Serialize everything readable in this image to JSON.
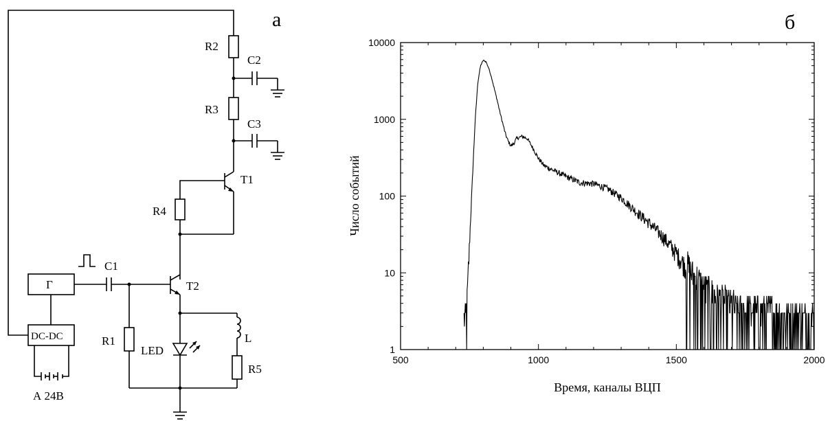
{
  "panel_a": {
    "letter": "а",
    "labels": {
      "r1": "R1",
      "r2": "R2",
      "r3": "R3",
      "r4": "R4",
      "r5": "R5",
      "c1": "C1",
      "c2": "C2",
      "c3": "C3",
      "t1": "T1",
      "t2": "T2",
      "led": "LED",
      "l": "L",
      "gen": "Г",
      "dcdc": "DC-DC",
      "battery": "А 24В"
    }
  },
  "panel_b": {
    "letter": "б",
    "chart_data": {
      "type": "line",
      "title": "",
      "xlabel": "Время, каналы ВЦП",
      "ylabel": "Число событий",
      "xlim": [
        500,
        2000
      ],
      "ylim": [
        1,
        10000
      ],
      "yscale": "log",
      "x_ticks": [
        "500",
        "1000",
        "1500",
        "2000"
      ],
      "y_ticks": [
        "1",
        "10",
        "100",
        "1000",
        "10000"
      ],
      "grid": false,
      "series": [
        {
          "name": "",
          "x": [
            730,
            740,
            745,
            750,
            760,
            770,
            780,
            790,
            800,
            810,
            820,
            830,
            840,
            850,
            860,
            870,
            880,
            890,
            900,
            910,
            920,
            940,
            960,
            980,
            1000,
            1020,
            1050,
            1100,
            1150,
            1200,
            1250,
            1300,
            1350,
            1400,
            1450,
            1500,
            1550,
            1600,
            1650,
            1700,
            1750,
            1800,
            1850,
            1900,
            1950,
            2000
          ],
          "y": [
            2,
            3,
            8,
            25,
            150,
            900,
            3000,
            5000,
            5900,
            5600,
            4600,
            3500,
            2500,
            1800,
            1250,
            900,
            650,
            520,
            450,
            480,
            560,
            600,
            560,
            420,
            310,
            250,
            220,
            180,
            150,
            145,
            125,
            95,
            65,
            45,
            30,
            18,
            10,
            6,
            4.5,
            3.5,
            3,
            3,
            3,
            2.5,
            2.5,
            2.5
          ]
        }
      ]
    }
  }
}
